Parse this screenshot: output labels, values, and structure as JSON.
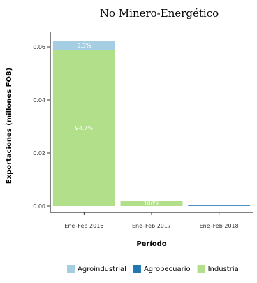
{
  "chart_data": {
    "type": "bar",
    "stacked": true,
    "title": "No Minero-Energético",
    "xlabel": "Período",
    "ylabel": "Exportaciones (millones FOB)",
    "categories": [
      "Ene–Feb 2016",
      "Ene–Feb 2017",
      "Ene–Feb 2018"
    ],
    "ylim": [
      0,
      0.064
    ],
    "yticks": [
      0.0,
      0.02,
      0.04,
      0.06
    ],
    "ytick_labels": [
      "0.00",
      "0.02",
      "0.04",
      "0.06"
    ],
    "grid": false,
    "legend_position": "bottom",
    "series": [
      {
        "name": "Agroindustrial",
        "color": "#a6cee3",
        "values": [
          0.0033,
          0.0,
          0.0
        ],
        "labels": [
          "5.3%",
          "",
          ""
        ]
      },
      {
        "name": "Agropecuario",
        "color": "#1f78b4",
        "values": [
          0.0,
          0.0,
          0.0
        ],
        "labels": [
          "",
          "",
          ""
        ]
      },
      {
        "name": "Industria",
        "color": "#b2df8a",
        "values": [
          0.0589,
          0.0021,
          0.0
        ],
        "labels": [
          "94.7%",
          "100%",
          ""
        ]
      }
    ]
  }
}
